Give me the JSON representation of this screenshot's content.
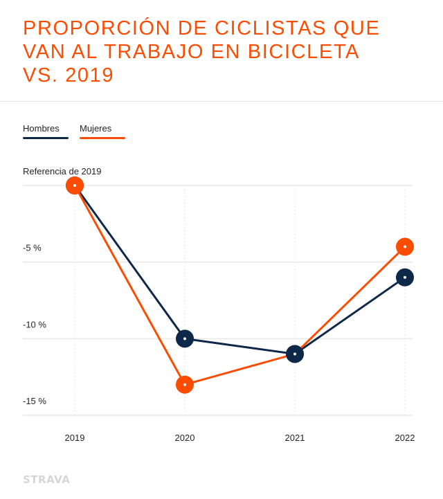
{
  "title_lines": [
    "PROPORCIÓN DE CICLISTAS QUE",
    "VAN AL TRABAJO EN BICICLETA",
    "VS. 2019"
  ],
  "logo_text": "STRAVA",
  "colors": {
    "hombres": "#0d2848",
    "mujeres": "#fc4c02",
    "grid": "#e8e8e8",
    "title": "#fc4c02"
  },
  "chart_data": {
    "type": "line",
    "title": "PROPORCIÓN DE CICLISTAS QUE VAN AL TRABAJO EN BICICLETA VS. 2019",
    "xlabel": "",
    "ylabel": "",
    "categories": [
      "2019",
      "2020",
      "2021",
      "2022"
    ],
    "series": [
      {
        "name": "Hombres",
        "values": [
          0,
          -10,
          -11,
          -6
        ]
      },
      {
        "name": "Mujeres",
        "values": [
          0,
          -13,
          -11,
          -4
        ]
      }
    ],
    "ylim": [
      -15,
      0
    ],
    "y_ticks": [
      {
        "value": 0,
        "label": "Referencia de 2019"
      },
      {
        "value": -5,
        "label": "-5 %"
      },
      {
        "value": -10,
        "label": "-10 %"
      },
      {
        "value": -15,
        "label": "-15 %"
      }
    ],
    "legend": {
      "placement": "top-left",
      "entries": [
        "Hombres",
        "Mujeres"
      ]
    },
    "grid": true
  }
}
